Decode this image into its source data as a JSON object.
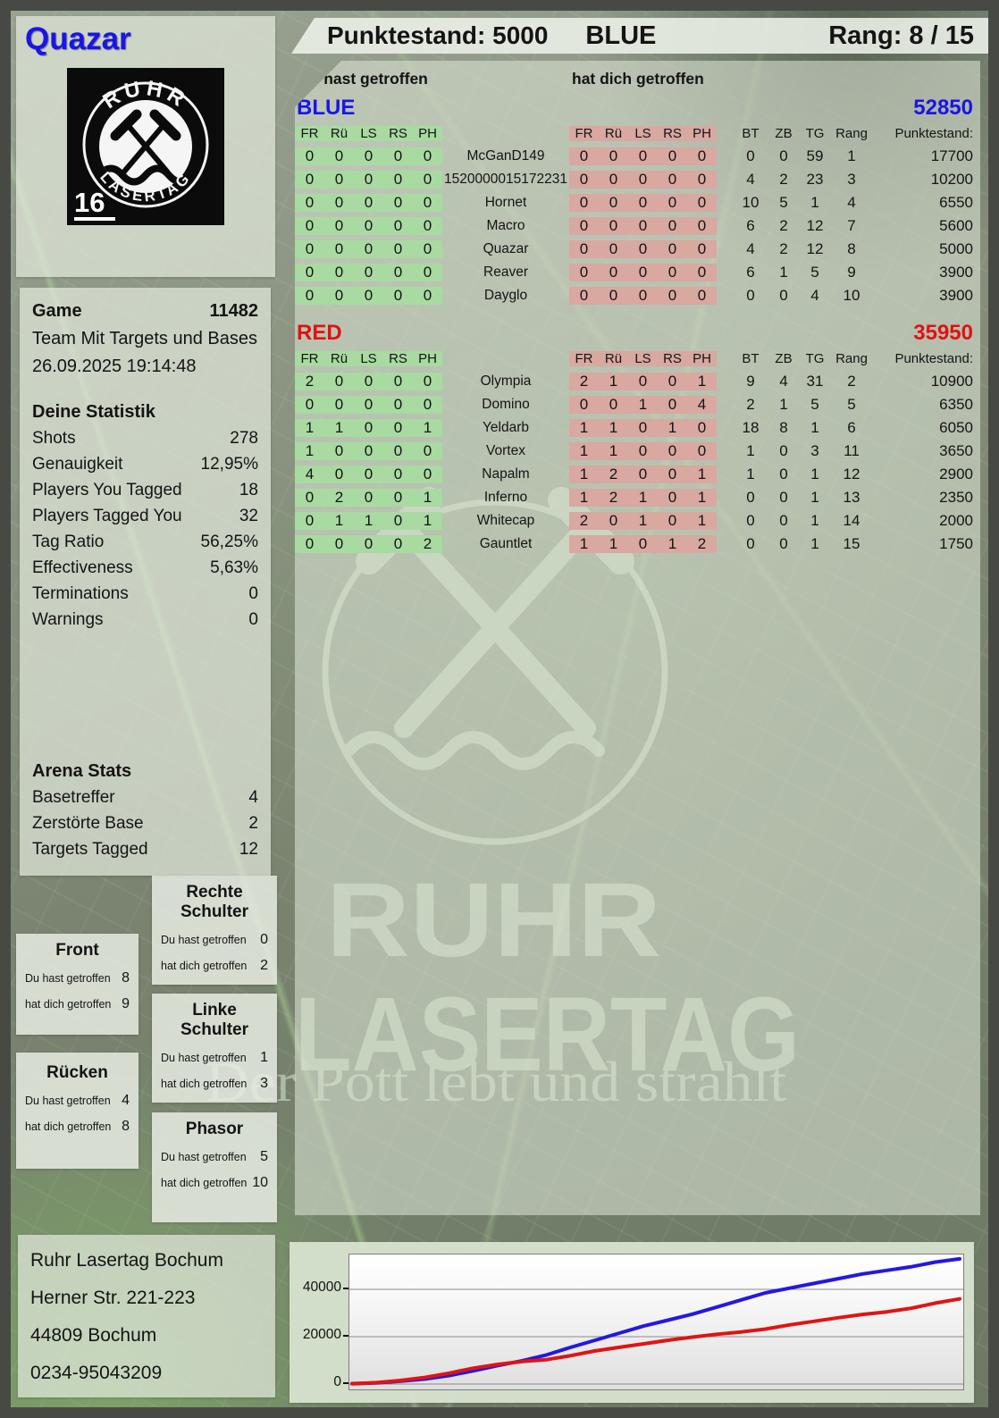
{
  "player": {
    "name": "Quazar",
    "pack_number": "16"
  },
  "logo": {
    "arc_top": "RUHR",
    "arc_bottom": "LASERTAG"
  },
  "header": {
    "score_label": "Punktestand: 5000",
    "team_label": "BLUE",
    "rank_label": "Rang: 8 / 15"
  },
  "hit_labels": {
    "you": "Du hast getroffen",
    "them": "hat dich getroffen"
  },
  "game_info": {
    "game_label": "Game",
    "game_number": "11482",
    "mode": "Team Mit Targets und Bases",
    "datetime": "26.09.2025 19:14:48"
  },
  "deine_statistik": {
    "title": "Deine Statistik",
    "rows": [
      [
        "Shots",
        "278"
      ],
      [
        "Genauigkeit",
        "12,95%"
      ],
      [
        "Players You Tagged",
        "18"
      ],
      [
        "Players Tagged You",
        "32"
      ],
      [
        "Tag Ratio",
        "56,25%"
      ],
      [
        "Effectiveness",
        "5,63%"
      ],
      [
        "Terminations",
        "0"
      ],
      [
        "Warnings",
        "0"
      ]
    ]
  },
  "arena_stats": {
    "title": "Arena Stats",
    "rows": [
      [
        "Basetreffer",
        "4"
      ],
      [
        "Zerstörte Base",
        "2"
      ],
      [
        "Targets Tagged",
        "12"
      ]
    ]
  },
  "table": {
    "hit_columns": [
      "FR",
      "Rü",
      "LS",
      "RS",
      "PH"
    ],
    "stat_columns": [
      "BT",
      "ZB",
      "TG",
      "Rang",
      "Punktestand:"
    ]
  },
  "teams": [
    {
      "name": "BLUE",
      "score": "52850",
      "color": "#1a15e6",
      "players": [
        {
          "name": "McGanD149",
          "you": [
            0,
            0,
            0,
            0,
            0
          ],
          "them": [
            0,
            0,
            0,
            0,
            0
          ],
          "stats": [
            0,
            0,
            59,
            1,
            "17700"
          ]
        },
        {
          "name": "1520000015172231",
          "you": [
            0,
            0,
            0,
            0,
            0
          ],
          "them": [
            0,
            0,
            0,
            0,
            0
          ],
          "stats": [
            4,
            2,
            23,
            3,
            "10200"
          ]
        },
        {
          "name": "Hornet",
          "you": [
            0,
            0,
            0,
            0,
            0
          ],
          "them": [
            0,
            0,
            0,
            0,
            0
          ],
          "stats": [
            10,
            5,
            1,
            4,
            "6550"
          ]
        },
        {
          "name": "Macro",
          "you": [
            0,
            0,
            0,
            0,
            0
          ],
          "them": [
            0,
            0,
            0,
            0,
            0
          ],
          "stats": [
            6,
            2,
            12,
            7,
            "5600"
          ]
        },
        {
          "name": "Quazar",
          "you": [
            0,
            0,
            0,
            0,
            0
          ],
          "them": [
            0,
            0,
            0,
            0,
            0
          ],
          "stats": [
            4,
            2,
            12,
            8,
            "5000"
          ]
        },
        {
          "name": "Reaver",
          "you": [
            0,
            0,
            0,
            0,
            0
          ],
          "them": [
            0,
            0,
            0,
            0,
            0
          ],
          "stats": [
            6,
            1,
            5,
            9,
            "3900"
          ]
        },
        {
          "name": "Dayglo",
          "you": [
            0,
            0,
            0,
            0,
            0
          ],
          "them": [
            0,
            0,
            0,
            0,
            0
          ],
          "stats": [
            0,
            0,
            4,
            10,
            "3900"
          ]
        }
      ]
    },
    {
      "name": "RED",
      "score": "35950",
      "color": "#e01212",
      "players": [
        {
          "name": "Olympia",
          "you": [
            2,
            0,
            0,
            0,
            0
          ],
          "them": [
            2,
            1,
            0,
            0,
            1
          ],
          "stats": [
            9,
            4,
            31,
            2,
            "10900"
          ]
        },
        {
          "name": "Domino",
          "you": [
            0,
            0,
            0,
            0,
            0
          ],
          "them": [
            0,
            0,
            1,
            0,
            4
          ],
          "stats": [
            2,
            1,
            5,
            5,
            "6350"
          ]
        },
        {
          "name": "Yeldarb",
          "you": [
            1,
            1,
            0,
            0,
            1
          ],
          "them": [
            1,
            1,
            0,
            1,
            0
          ],
          "stats": [
            18,
            8,
            1,
            6,
            "6050"
          ]
        },
        {
          "name": "Vortex",
          "you": [
            1,
            0,
            0,
            0,
            0
          ],
          "them": [
            1,
            1,
            0,
            0,
            0
          ],
          "stats": [
            1,
            0,
            3,
            11,
            "3650"
          ]
        },
        {
          "name": "Napalm",
          "you": [
            4,
            0,
            0,
            0,
            0
          ],
          "them": [
            1,
            2,
            0,
            0,
            1
          ],
          "stats": [
            1,
            0,
            1,
            12,
            "2900"
          ]
        },
        {
          "name": "Inferno",
          "you": [
            0,
            2,
            0,
            0,
            1
          ],
          "them": [
            1,
            2,
            1,
            0,
            1
          ],
          "stats": [
            0,
            0,
            1,
            13,
            "2350"
          ]
        },
        {
          "name": "Whitecap",
          "you": [
            0,
            1,
            1,
            0,
            1
          ],
          "them": [
            2,
            0,
            1,
            0,
            1
          ],
          "stats": [
            0,
            0,
            1,
            14,
            "2000"
          ]
        },
        {
          "name": "Gauntlet",
          "you": [
            0,
            0,
            0,
            0,
            2
          ],
          "them": [
            1,
            1,
            0,
            1,
            2
          ],
          "stats": [
            0,
            0,
            1,
            15,
            "1750"
          ]
        }
      ]
    }
  ],
  "body_parts": [
    {
      "title": "Front",
      "you": "8",
      "them": "9"
    },
    {
      "title": "Rücken",
      "you": "4",
      "them": "8"
    },
    {
      "title": "Rechte Schulter",
      "you": "0",
      "them": "2"
    },
    {
      "title": "Linke Schulter",
      "you": "1",
      "them": "3"
    },
    {
      "title": "Phasor",
      "you": "5",
      "them": "10"
    }
  ],
  "address": {
    "lines": [
      "Ruhr Lasertag Bochum",
      "Herner Str. 221-223",
      "44809 Bochum",
      "0234-95043209"
    ]
  },
  "watermark": {
    "word1": "RUHR",
    "word2": "LASERTAG",
    "slogan": "Der Pott lebt und strahlt"
  },
  "colors": {
    "team_blue": "#1a15e6",
    "team_red": "#e01212",
    "cell_green": "#a8daa1",
    "cell_red": "#d8a8a1",
    "line_blue": "#2418e0",
    "line_red": "#e01414"
  },
  "chart_data": {
    "type": "line",
    "title": "",
    "xlabel": "",
    "ylabel": "",
    "yticks": [
      0,
      20000,
      40000
    ],
    "ylim": [
      0,
      55000
    ],
    "grid": true,
    "legend": "none",
    "series": [
      {
        "name": "BLUE",
        "color": "#2418e0",
        "values": [
          200,
          500,
          1200,
          2100,
          3600,
          5600,
          7800,
          9800,
          12300,
          15500,
          18500,
          21500,
          24500,
          27000,
          29500,
          32500,
          35500,
          38500,
          40500,
          42500,
          44500,
          46500,
          48000,
          49500,
          51500,
          52850
        ]
      },
      {
        "name": "RED",
        "color": "#e01414",
        "values": [
          100,
          600,
          1500,
          2800,
          4600,
          6700,
          8300,
          9500,
          10300,
          12000,
          14000,
          15500,
          17000,
          18500,
          19800,
          21000,
          22000,
          23200,
          25000,
          26500,
          28000,
          29400,
          30500,
          32000,
          34200,
          35950
        ]
      }
    ]
  }
}
